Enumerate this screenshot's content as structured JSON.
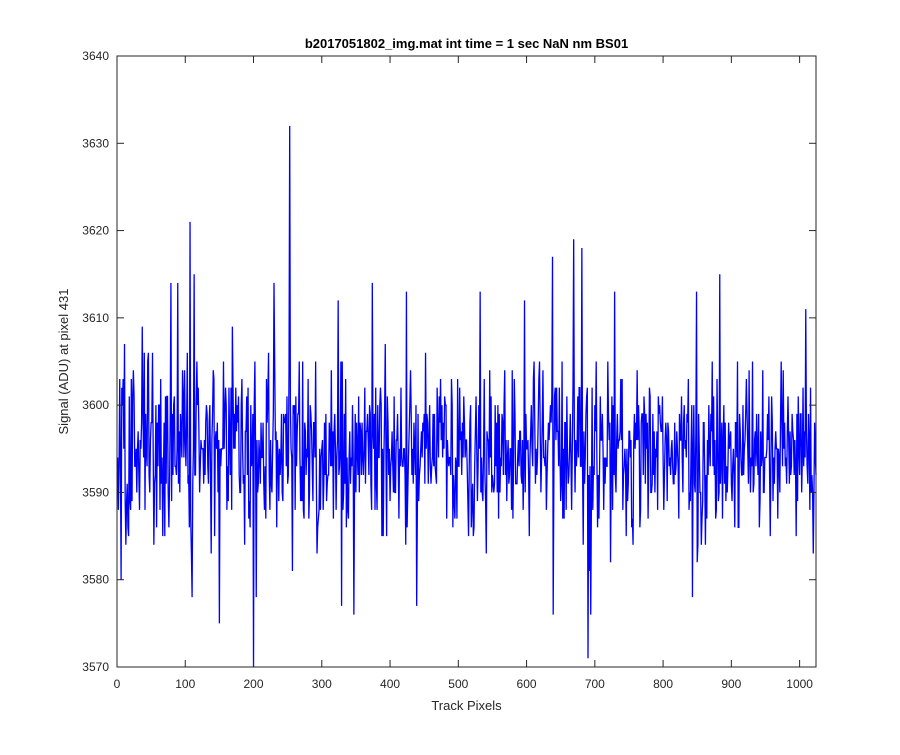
{
  "chart_data": {
    "type": "line",
    "title": "b2017051802_img.mat int time = 1 sec  NaN nm BS01",
    "xlabel": "Track Pixels",
    "ylabel": "Signal (ADU) at pixel 431",
    "xlim": [
      0,
      1024
    ],
    "ylim": [
      3570,
      3640
    ],
    "xticks": [
      0,
      100,
      200,
      300,
      400,
      500,
      600,
      700,
      800,
      900,
      1000
    ],
    "yticks": [
      3570,
      3580,
      3590,
      3600,
      3610,
      3620,
      3630,
      3640
    ],
    "grid": false,
    "box": true,
    "line_color": "#0000ff",
    "axis_color": "#262626",
    "approximate_shape": {
      "n_points": 1024,
      "baseline": 3595,
      "notable_points": [
        {
          "x": 3,
          "y": 3603
        },
        {
          "x": 5,
          "y": 3580
        },
        {
          "x": 36,
          "y": 3609
        },
        {
          "x": 78,
          "y": 3614
        },
        {
          "x": 88,
          "y": 3614
        },
        {
          "x": 106,
          "y": 3621
        },
        {
          "x": 109,
          "y": 3578
        },
        {
          "x": 112,
          "y": 3615
        },
        {
          "x": 149,
          "y": 3575
        },
        {
          "x": 168,
          "y": 3609
        },
        {
          "x": 199,
          "y": 3570
        },
        {
          "x": 203,
          "y": 3578
        },
        {
          "x": 229,
          "y": 3614
        },
        {
          "x": 252,
          "y": 3632
        },
        {
          "x": 256,
          "y": 3581
        },
        {
          "x": 323,
          "y": 3612
        },
        {
          "x": 328,
          "y": 3577
        },
        {
          "x": 346,
          "y": 3576
        },
        {
          "x": 373,
          "y": 3614
        },
        {
          "x": 423,
          "y": 3613
        },
        {
          "x": 438,
          "y": 3577
        },
        {
          "x": 531,
          "y": 3613
        },
        {
          "x": 596,
          "y": 3612
        },
        {
          "x": 637,
          "y": 3617
        },
        {
          "x": 638,
          "y": 3576
        },
        {
          "x": 668,
          "y": 3619
        },
        {
          "x": 680,
          "y": 3618
        },
        {
          "x": 689,
          "y": 3571
        },
        {
          "x": 693,
          "y": 3576
        },
        {
          "x": 728,
          "y": 3613
        },
        {
          "x": 842,
          "y": 3578
        },
        {
          "x": 848,
          "y": 3613
        },
        {
          "x": 882,
          "y": 3615
        },
        {
          "x": 1008,
          "y": 3611
        },
        {
          "x": 1019,
          "y": 3583
        }
      ]
    }
  }
}
